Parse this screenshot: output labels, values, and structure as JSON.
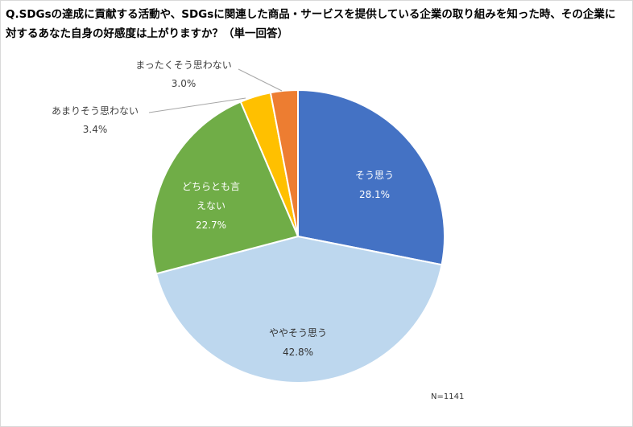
{
  "title": "Q.SDGsの達成に貢献する活動や、SDGsに関連した商品・サービスを提供している企業の取り組みを知った時、その企業に対するあなた自身の好感度は上がりますか？（単一回答）",
  "note": "N=1141",
  "colors": {
    "so_omou": "#4472c4",
    "yaya_so_omou": "#bdd7ee",
    "dochiratomo": "#70ad47",
    "amari": "#ffc000",
    "mattaku": "#ed7d31"
  },
  "chart_data": {
    "type": "pie",
    "title": "Q.SDGsの達成に貢献する活動や、SDGsに関連した商品・サービスを提供している企業の取り組みを知った時、その企業に対するあなた自身の好感度は上がりますか？（単一回答）",
    "start": "12 o'clock, clockwise",
    "slices": [
      {
        "label": "そう思う",
        "value": 28.1,
        "display": "28.1%",
        "color": "#4472c4"
      },
      {
        "label": "ややそう思う",
        "value": 42.8,
        "display": "42.8%",
        "color": "#bdd7ee"
      },
      {
        "label": "どちらとも言えない",
        "label_lines": [
          "どちらとも言",
          "えない"
        ],
        "value": 22.7,
        "display": "22.7%",
        "color": "#70ad47"
      },
      {
        "label": "あまりそう思わない",
        "value": 3.4,
        "display": "3.4%",
        "color": "#ffc000"
      },
      {
        "label": "まったくそう思わない",
        "value": 3.0,
        "display": "3.0%",
        "color": "#ed7d31"
      }
    ],
    "legend": "none",
    "n_note": "N=1141"
  }
}
